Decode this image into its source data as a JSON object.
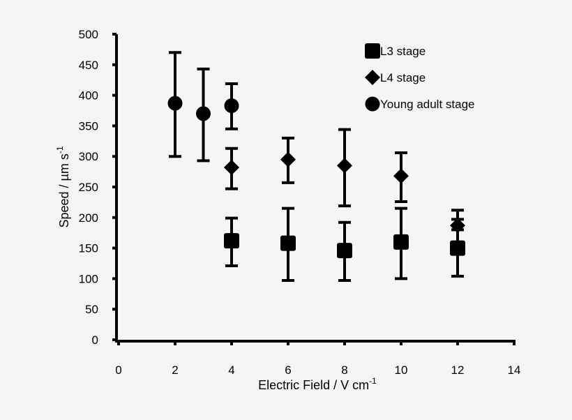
{
  "chart_data": {
    "type": "scatter",
    "xlabel": "Electric Field / V cm",
    "xlabel_sup": "-1",
    "ylabel": "Speed / µm s",
    "ylabel_sup": "-1",
    "xlim": [
      0,
      14
    ],
    "ylim": [
      0,
      500
    ],
    "xticks": [
      0,
      2,
      4,
      6,
      8,
      10,
      12,
      14
    ],
    "yticks": [
      0,
      50,
      100,
      150,
      200,
      250,
      300,
      350,
      400,
      450,
      500
    ],
    "grid": false,
    "legend_placement": "top-right",
    "color": "#000000",
    "series": [
      {
        "name": "L3 stage",
        "marker": "square",
        "points": [
          {
            "x": 4,
            "y": 162,
            "upper": 199,
            "lower": 121
          },
          {
            "x": 6,
            "y": 158,
            "upper": 215,
            "lower": 97
          },
          {
            "x": 8,
            "y": 146,
            "upper": 192,
            "lower": 97
          },
          {
            "x": 10,
            "y": 160,
            "upper": 215,
            "lower": 100
          },
          {
            "x": 12,
            "y": 150,
            "upper": 197,
            "lower": 104
          }
        ]
      },
      {
        "name": "L4 stage",
        "marker": "diamond",
        "points": [
          {
            "x": 4,
            "y": 282,
            "upper": 313,
            "lower": 247
          },
          {
            "x": 6,
            "y": 295,
            "upper": 330,
            "lower": 257
          },
          {
            "x": 8,
            "y": 285,
            "upper": 344,
            "lower": 219
          },
          {
            "x": 10,
            "y": 268,
            "upper": 306,
            "lower": 226
          },
          {
            "x": 12,
            "y": 187,
            "upper": 212,
            "lower": 180
          }
        ]
      },
      {
        "name": "Young adult stage",
        "marker": "circle",
        "points": [
          {
            "x": 2,
            "y": 387,
            "upper": 470,
            "lower": 300
          },
          {
            "x": 3,
            "y": 370,
            "upper": 443,
            "lower": 293
          },
          {
            "x": 4,
            "y": 383,
            "upper": 419,
            "lower": 345
          }
        ]
      }
    ]
  }
}
